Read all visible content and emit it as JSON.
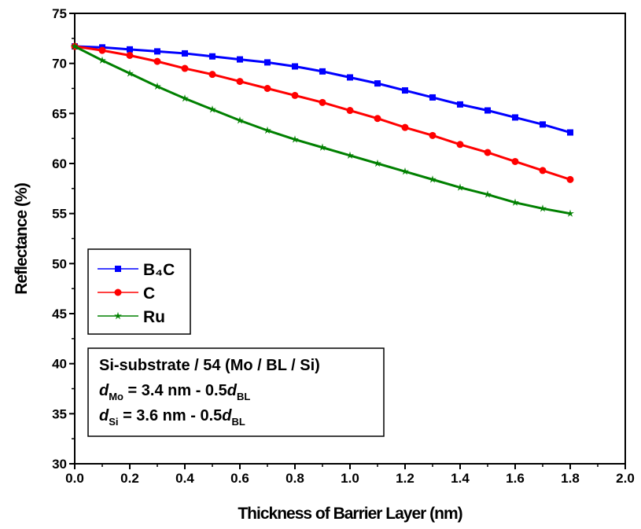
{
  "chart_data": {
    "type": "line",
    "x_label": "Thickness of Barrier Layer (nm)",
    "y_label": "Reflectance (%)",
    "x": [
      0,
      0.1,
      0.2,
      0.3,
      0.4,
      0.5,
      0.6,
      0.7,
      0.8,
      0.9,
      1.0,
      1.1,
      1.2,
      1.3,
      1.4,
      1.5,
      1.6,
      1.7,
      1.8
    ],
    "series": [
      {
        "name": "B₄C",
        "color": "#0000ff",
        "marker": "square",
        "values": [
          71.7,
          71.6,
          71.4,
          71.2,
          71.0,
          70.7,
          70.4,
          70.1,
          69.7,
          69.2,
          68.6,
          68.0,
          67.3,
          66.6,
          65.9,
          65.3,
          64.6,
          63.9,
          63.1
        ]
      },
      {
        "name": "C",
        "color": "#ff0000",
        "marker": "circle",
        "values": [
          71.7,
          71.3,
          70.8,
          70.2,
          69.5,
          68.9,
          68.2,
          67.5,
          66.8,
          66.1,
          65.3,
          64.5,
          63.6,
          62.8,
          61.9,
          61.1,
          60.2,
          59.3,
          58.4
        ]
      },
      {
        "name": "Ru",
        "color": "#008000",
        "marker": "star",
        "values": [
          71.7,
          70.3,
          69.0,
          67.7,
          66.5,
          65.4,
          64.3,
          63.3,
          62.4,
          61.6,
          60.8,
          60.0,
          59.2,
          58.4,
          57.6,
          56.9,
          56.1,
          55.5,
          55.0
        ]
      }
    ],
    "xlim": [
      0,
      2.0
    ],
    "xticks": [
      {
        "value": 0,
        "label": "0.0"
      },
      0.2,
      0.4,
      0.6,
      0.8,
      {
        "value": 1,
        "label": "1.0"
      },
      1.2,
      1.4,
      1.6,
      1.8,
      {
        "value": 2,
        "label": "2.0"
      }
    ],
    "ylim": [
      30,
      75
    ],
    "yticks": [
      30,
      35,
      40,
      45,
      50,
      55,
      60,
      65,
      70,
      75
    ],
    "legend": "center-left",
    "annotation": [
      [
        "Si-substrate / 54 (Mo / BL / Si)"
      ],
      [
        "d",
        "Mo",
        " = 3.4 nm - 0.5",
        "d",
        "BL"
      ],
      [
        "d",
        "Si",
        " = 3.6 nm - 0.5",
        "d",
        "BL"
      ]
    ]
  }
}
